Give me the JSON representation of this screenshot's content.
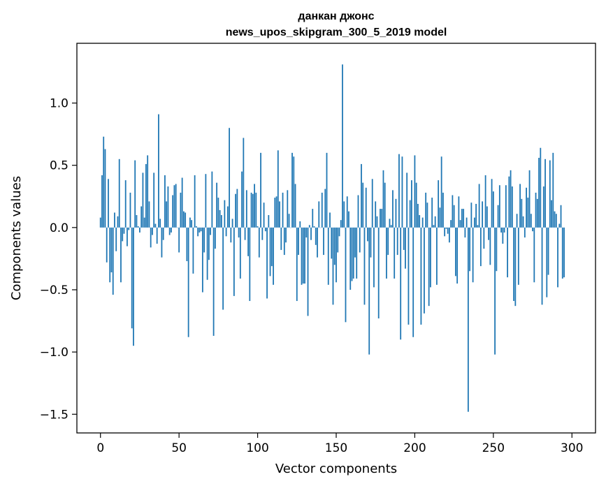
{
  "chart_data": {
    "type": "bar",
    "title": "данкан джонс",
    "subtitle": "news_upos_skipgram_300_5_2019 model",
    "xlabel": "Vector components",
    "ylabel": "Components values",
    "xlim": [
      -15,
      315
    ],
    "ylim": [
      -1.65,
      1.48
    ],
    "xticks": [
      0,
      50,
      100,
      150,
      200,
      250,
      300
    ],
    "xtick_labels": [
      "0",
      "50",
      "100",
      "150",
      "200",
      "250",
      "300"
    ],
    "yticks": [
      -1.5,
      -1.0,
      -0.5,
      0.0,
      0.5,
      1.0
    ],
    "ytick_labels": [
      "−1.5",
      "−1.0",
      "−0.5",
      "0.0",
      "0.5",
      "1.0"
    ],
    "grid": false,
    "bar_color": "#1f77b4",
    "values": [
      0.08,
      0.42,
      0.73,
      0.63,
      -0.28,
      0.39,
      -0.44,
      -0.36,
      -0.54,
      0.12,
      -0.19,
      0.09,
      0.55,
      -0.44,
      -0.11,
      -0.05,
      0.38,
      -0.15,
      -0.02,
      0.28,
      -0.81,
      -0.95,
      0.54,
      0.1,
      0.01,
      -0.04,
      0.17,
      0.44,
      0.08,
      0.51,
      0.58,
      0.21,
      -0.16,
      -0.06,
      0.44,
      0.03,
      -0.13,
      0.91,
      0.07,
      -0.24,
      -0.1,
      0.42,
      0.21,
      0.33,
      -0.06,
      -0.04,
      0.26,
      0.34,
      0.35,
      0.0,
      -0.2,
      0.28,
      0.4,
      0.13,
      0.12,
      -0.27,
      -0.88,
      0.08,
      0.06,
      -0.37,
      0.42,
      0.01,
      -0.07,
      -0.04,
      -0.03,
      -0.52,
      -0.2,
      0.43,
      -0.42,
      -0.26,
      -0.06,
      0.45,
      -0.87,
      -0.17,
      0.36,
      0.24,
      0.14,
      0.1,
      -0.66,
      0.22,
      -0.07,
      0.17,
      0.8,
      -0.12,
      0.07,
      -0.55,
      0.27,
      0.31,
      -0.08,
      -0.41,
      0.45,
      0.72,
      -0.1,
      0.3,
      -0.23,
      -0.59,
      0.28,
      0.27,
      0.35,
      0.28,
      0.01,
      -0.24,
      0.6,
      -0.1,
      0.2,
      -0.03,
      -0.57,
      0.1,
      -0.39,
      -0.31,
      -0.46,
      0.24,
      0.25,
      0.62,
      0.21,
      -0.18,
      0.28,
      -0.22,
      -0.12,
      0.3,
      0.11,
      0.0,
      0.6,
      0.57,
      0.35,
      -0.59,
      -0.22,
      0.05,
      -0.46,
      -0.45,
      -0.45,
      -0.08,
      -0.71,
      0.02,
      -0.1,
      0.15,
      0.01,
      -0.14,
      -0.24,
      0.21,
      0.0,
      0.28,
      -0.22,
      0.31,
      0.6,
      -0.46,
      0.12,
      -0.25,
      -0.62,
      -0.3,
      -0.44,
      -0.2,
      -0.07,
      0.06,
      1.31,
      0.21,
      -0.76,
      0.25,
      0.13,
      -0.5,
      -0.43,
      -0.41,
      -0.24,
      -0.41,
      0.26,
      -0.2,
      0.51,
      0.36,
      -0.62,
      0.32,
      -0.11,
      -1.02,
      -0.24,
      0.39,
      -0.48,
      0.21,
      0.09,
      -0.73,
      0.15,
      0.15,
      0.46,
      0.36,
      -0.41,
      -0.22,
      0.07,
      0.02,
      0.3,
      -0.41,
      0.23,
      -0.22,
      0.59,
      -0.9,
      0.57,
      -0.18,
      -0.33,
      0.44,
      -0.78,
      0.22,
      0.38,
      -0.88,
      0.58,
      0.36,
      0.19,
      0.1,
      -0.78,
      0.08,
      -0.69,
      0.28,
      0.2,
      -0.63,
      -0.48,
      0.24,
      0.02,
      0.09,
      -0.46,
      0.38,
      0.16,
      0.57,
      0.28,
      -0.07,
      -0.01,
      -0.05,
      -0.12,
      0.06,
      0.26,
      0.18,
      -0.39,
      -0.45,
      0.25,
      0.06,
      0.15,
      0.15,
      -0.08,
      0.08,
      -1.48,
      -0.35,
      0.2,
      -0.44,
      0.08,
      0.19,
      0.02,
      0.35,
      -0.31,
      0.21,
      -0.17,
      0.42,
      0.17,
      -0.1,
      -0.3,
      0.39,
      0.29,
      -1.02,
      -0.35,
      0.18,
      0.34,
      -0.04,
      -0.13,
      -0.04,
      0.34,
      -0.4,
      0.41,
      0.46,
      0.33,
      -0.59,
      -0.63,
      0.11,
      -0.46,
      0.35,
      0.23,
      0.09,
      -0.08,
      0.32,
      0.24,
      0.46,
      0.11,
      -0.03,
      -0.44,
      0.28,
      0.23,
      0.56,
      0.64,
      -0.62,
      0.33,
      0.55,
      -0.56,
      -0.38,
      0.54,
      0.22,
      0.6,
      0.13,
      0.11,
      -0.48,
      0.03,
      0.18,
      -0.41,
      -0.4
    ]
  }
}
